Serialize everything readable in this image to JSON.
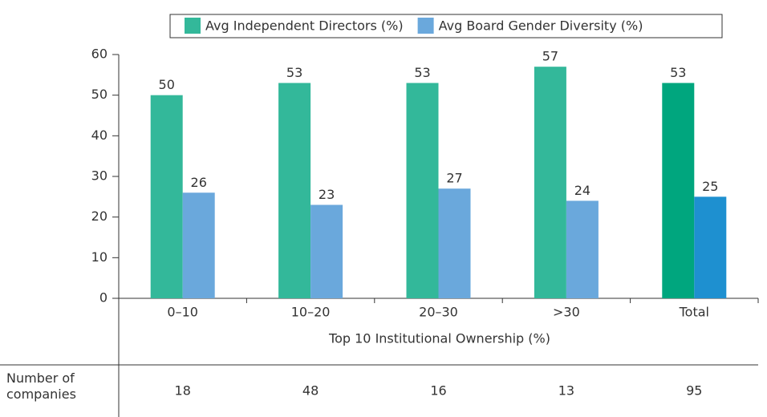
{
  "chart_data": {
    "type": "bar",
    "categories": [
      "0–10",
      "10–20",
      "20–30",
      ">30",
      "Total"
    ],
    "series": [
      {
        "name": "Avg Independent Directors (%)",
        "color": "#33b89a",
        "colors": [
          "#33b89a",
          "#33b89a",
          "#33b89a",
          "#33b89a",
          "#00a67e"
        ],
        "values": [
          50,
          53,
          53,
          57,
          53
        ]
      },
      {
        "name": "Avg Board Gender Diversity (%)",
        "color": "#6aa8dc",
        "colors": [
          "#6aa8dc",
          "#6aa8dc",
          "#6aa8dc",
          "#6aa8dc",
          "#1e90d0"
        ],
        "values": [
          26,
          23,
          27,
          24,
          25
        ]
      }
    ],
    "xlabel": "Top 10 Institutional Ownership (%)",
    "ylim": [
      0,
      60
    ],
    "yticks": [
      0,
      10,
      20,
      30,
      40,
      50,
      60
    ],
    "legend": "top",
    "table": {
      "label": "Number of companies",
      "values": [
        18,
        48,
        16,
        13,
        95
      ]
    }
  }
}
